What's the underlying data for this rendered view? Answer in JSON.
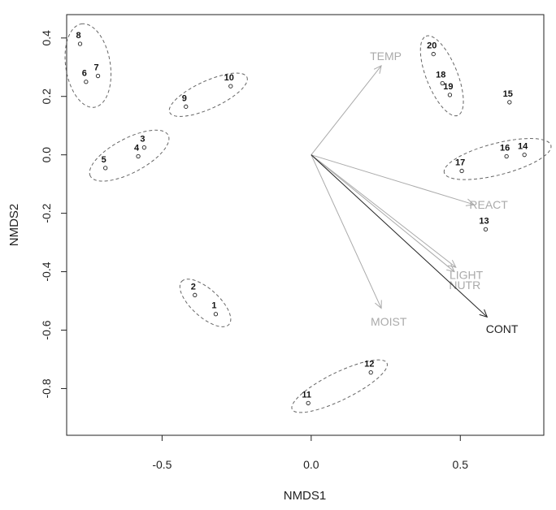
{
  "chart_data": {
    "type": "scatter",
    "title": "",
    "xlabel": "NMDS1",
    "ylabel": "NMDS2",
    "xlim": [
      -0.82,
      0.78
    ],
    "ylim": [
      -0.96,
      0.48
    ],
    "x_ticks": [
      -0.5,
      0.0,
      0.5
    ],
    "x_tick_labels": [
      "-0.5",
      "0.0",
      "0.5"
    ],
    "y_ticks": [
      0.4,
      0.2,
      0.0,
      -0.2,
      -0.4,
      -0.6,
      -0.8
    ],
    "y_tick_labels": [
      "0.4",
      "0.2",
      "0.0",
      "-0.2",
      "-0.4",
      "-0.6",
      "-0.8"
    ],
    "grid": false,
    "points": [
      {
        "label": "1",
        "x": -0.32,
        "y": -0.545
      },
      {
        "label": "2",
        "x": -0.39,
        "y": -0.48
      },
      {
        "label": "3",
        "x": -0.56,
        "y": 0.025
      },
      {
        "label": "4",
        "x": -0.58,
        "y": -0.005
      },
      {
        "label": "5",
        "x": -0.69,
        "y": -0.045
      },
      {
        "label": "6",
        "x": -0.755,
        "y": 0.25
      },
      {
        "label": "7",
        "x": -0.715,
        "y": 0.27
      },
      {
        "label": "8",
        "x": -0.775,
        "y": 0.38
      },
      {
        "label": "9",
        "x": -0.42,
        "y": 0.165
      },
      {
        "label": "10",
        "x": -0.27,
        "y": 0.235
      },
      {
        "label": "11",
        "x": -0.01,
        "y": -0.85
      },
      {
        "label": "12",
        "x": 0.2,
        "y": -0.745
      },
      {
        "label": "13",
        "x": 0.585,
        "y": -0.255
      },
      {
        "label": "14",
        "x": 0.715,
        "y": 0.0
      },
      {
        "label": "15",
        "x": 0.665,
        "y": 0.18
      },
      {
        "label": "16",
        "x": 0.655,
        "y": -0.005
      },
      {
        "label": "17",
        "x": 0.505,
        "y": -0.055
      },
      {
        "label": "18",
        "x": 0.44,
        "y": 0.245
      },
      {
        "label": "19",
        "x": 0.465,
        "y": 0.205
      },
      {
        "label": "20",
        "x": 0.41,
        "y": 0.345
      }
    ],
    "groups": [
      [
        "6",
        "7",
        "8"
      ],
      [
        "3",
        "4",
        "5"
      ],
      [
        "9",
        "10"
      ],
      [
        "1",
        "2"
      ],
      [
        "11",
        "12"
      ],
      [
        "18",
        "19",
        "20"
      ],
      [
        "14",
        "16",
        "17"
      ]
    ],
    "vectors": [
      {
        "label": "TEMP",
        "x": 0.235,
        "y": 0.305,
        "label_x": 0.25,
        "label_y": 0.325,
        "color": "#aaaaaa"
      },
      {
        "label": "REACT",
        "x": 0.545,
        "y": -0.17,
        "label_x": 0.595,
        "label_y": -0.185,
        "color": "#aaaaaa"
      },
      {
        "label": "LIGHT",
        "x": 0.485,
        "y": -0.385,
        "label_x": 0.52,
        "label_y": -0.425,
        "color": "#aaaaaa"
      },
      {
        "label": "NUTR",
        "x": 0.48,
        "y": -0.4,
        "label_x": 0.515,
        "label_y": -0.46,
        "color": "#aaaaaa"
      },
      {
        "label": "MOIST",
        "x": 0.235,
        "y": -0.525,
        "label_x": 0.26,
        "label_y": -0.585,
        "color": "#aaaaaa"
      },
      {
        "label": "CONT",
        "x": 0.59,
        "y": -0.555,
        "label_x": 0.64,
        "label_y": -0.61,
        "color": "#222222"
      }
    ]
  }
}
